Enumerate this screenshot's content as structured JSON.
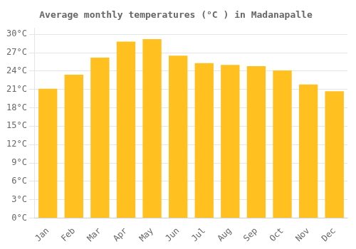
{
  "chart_data": {
    "type": "bar",
    "title": "Average monthly temperatures (°C ) in Madanapalle",
    "categories": [
      "Jan",
      "Feb",
      "Mar",
      "Apr",
      "May",
      "Jun",
      "Jul",
      "Aug",
      "Sep",
      "Oct",
      "Nov",
      "Dec"
    ],
    "values": [
      21.1,
      23.4,
      26.2,
      28.8,
      29.2,
      26.5,
      25.3,
      25.0,
      24.8,
      24.1,
      21.8,
      20.7
    ],
    "color": "#FFC020",
    "ylim": [
      0,
      31
    ],
    "yticks": [
      {
        "value": 0,
        "label": "0°C"
      },
      {
        "value": 3,
        "label": "3°C"
      },
      {
        "value": 6,
        "label": "6°C"
      },
      {
        "value": 9,
        "label": "9°C"
      },
      {
        "value": 12,
        "label": "12°C"
      },
      {
        "value": 15,
        "label": "15°C"
      },
      {
        "value": 18,
        "label": "18°C"
      },
      {
        "value": 21,
        "label": "21°C"
      },
      {
        "value": 24,
        "label": "24°C"
      },
      {
        "value": 27,
        "label": "27°C"
      },
      {
        "value": 30,
        "label": "30°C"
      }
    ],
    "grid": true
  }
}
